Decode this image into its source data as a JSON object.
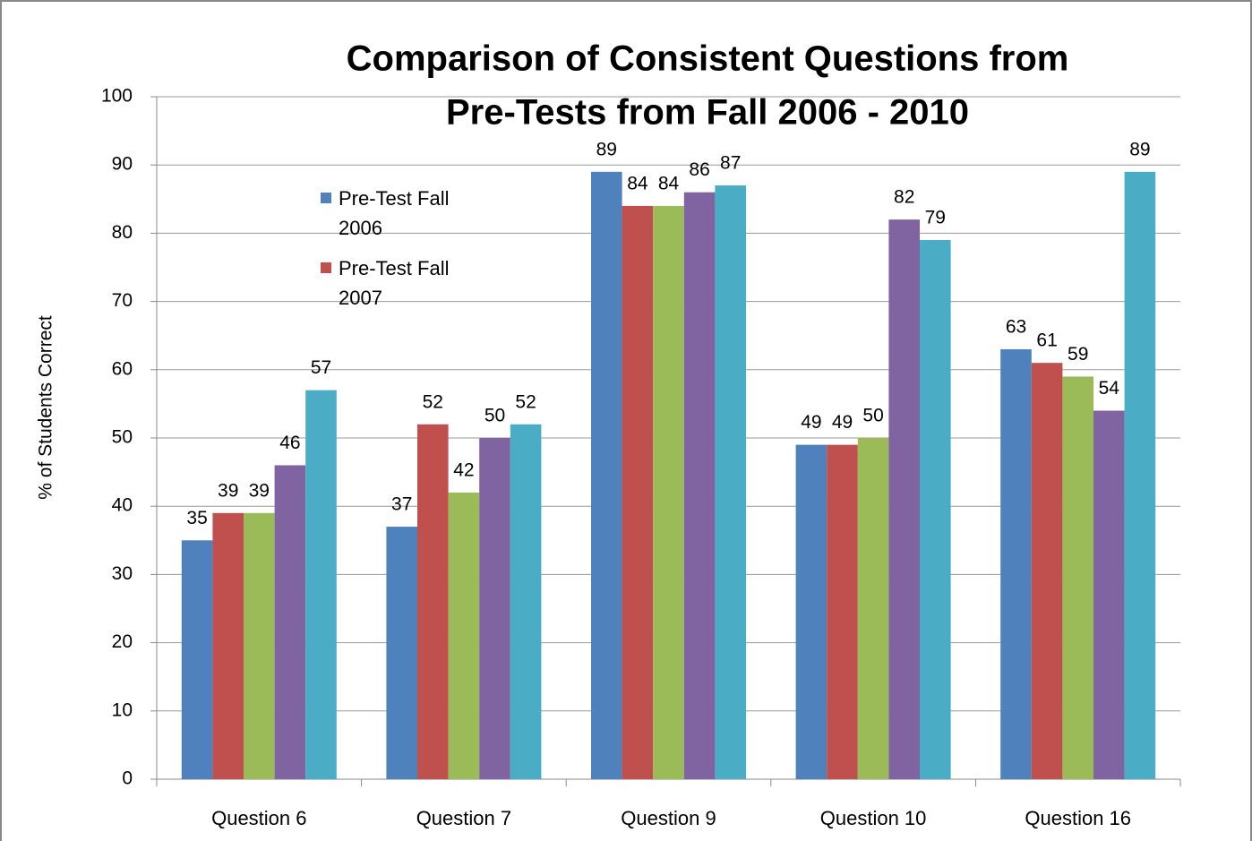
{
  "chart_data": {
    "type": "bar",
    "title": [
      "Comparison of Consistent Questions from",
      "Pre-Tests from Fall 2006 - 2010"
    ],
    "y_label": "% of Students Correct",
    "categories": [
      "Question 6",
      "Question 7",
      "Question 9",
      "Question 10",
      "Question 16"
    ],
    "series": [
      {
        "name": "Pre-Test Fall 2006",
        "color": "#4f81bd",
        "values": [
          35,
          37,
          89,
          49,
          63
        ]
      },
      {
        "name": "Pre-Test Fall 2007",
        "color": "#c0504d",
        "values": [
          39,
          52,
          84,
          49,
          61
        ]
      },
      {
        "color": "#9bbb59",
        "values": [
          39,
          42,
          84,
          50,
          59
        ]
      },
      {
        "color": "#8064a2",
        "values": [
          46,
          50,
          86,
          82,
          54
        ]
      },
      {
        "color": "#4bacc6",
        "values": [
          57,
          52,
          87,
          79,
          89
        ]
      }
    ],
    "ylim": [
      0,
      100
    ],
    "yticks": [
      0,
      10,
      20,
      30,
      40,
      50,
      60,
      70,
      80,
      90,
      100
    ],
    "grid": true
  }
}
